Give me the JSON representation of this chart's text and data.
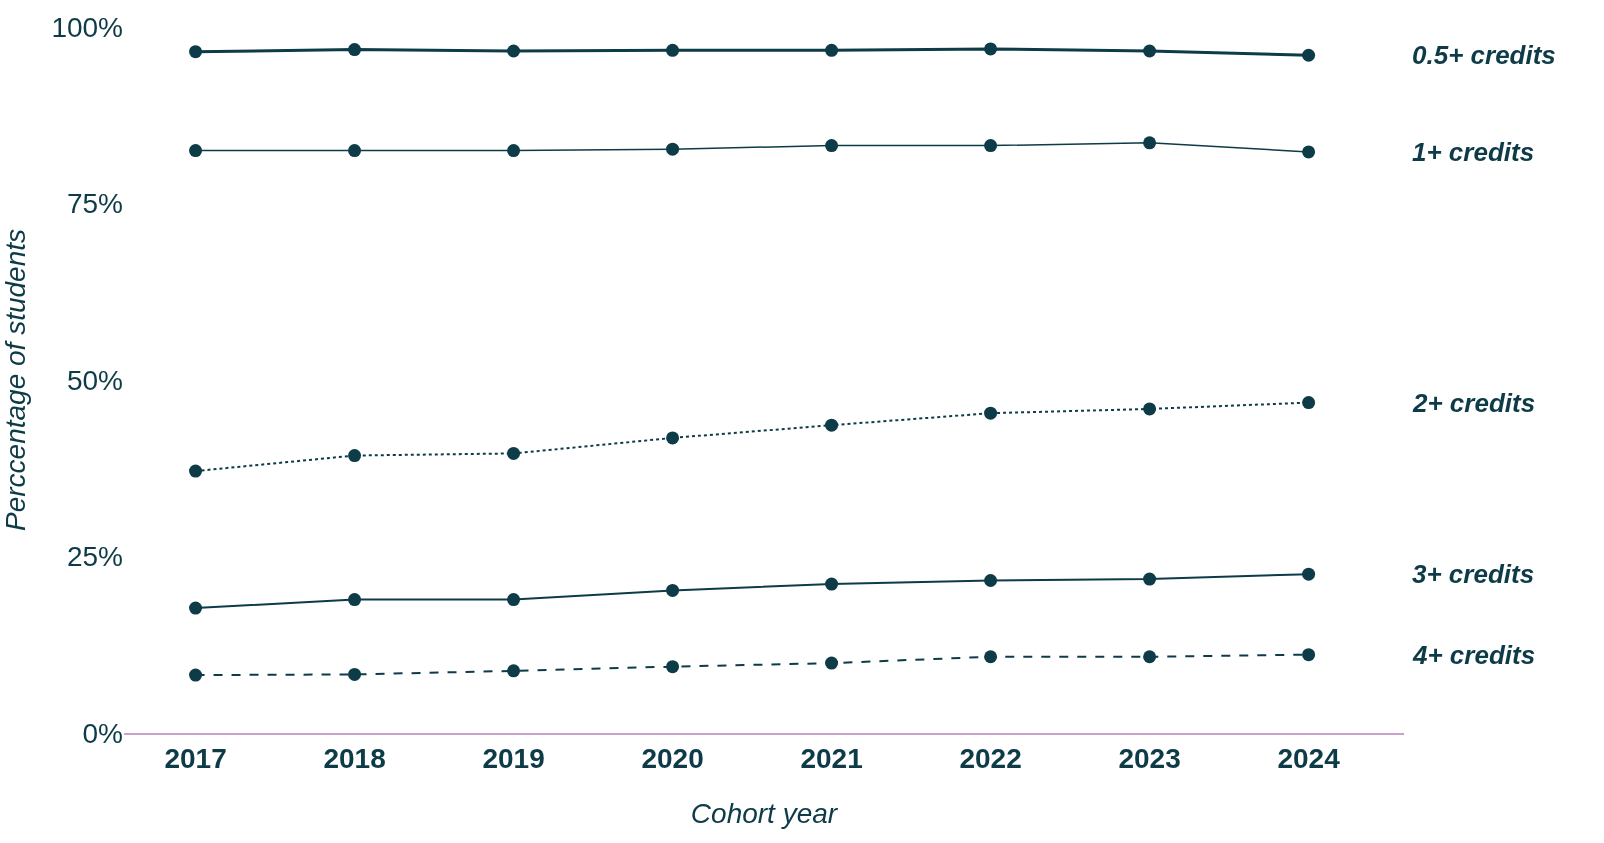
{
  "chart_data": {
    "type": "line",
    "xlabel": "Cohort year",
    "ylabel": "Perccentage of students",
    "categories": [
      "2017",
      "2018",
      "2019",
      "2020",
      "2021",
      "2022",
      "2023",
      "2024"
    ],
    "ylim": [
      0,
      100
    ],
    "yticks": [
      {
        "value": 0,
        "label": "0%"
      },
      {
        "value": 25,
        "label": "25%"
      },
      {
        "value": 50,
        "label": "50%"
      },
      {
        "value": 75,
        "label": "75%"
      },
      {
        "value": 100,
        "label": "100%"
      }
    ],
    "legend": false,
    "marker": "circle",
    "series": [
      {
        "name": "0.5+ credits",
        "color": "#0d3b47",
        "line_style": "solid",
        "values": [
          96.5,
          96.8,
          96.6,
          96.7,
          96.7,
          96.9,
          96.6,
          96.0
        ]
      },
      {
        "name": "1+ credits",
        "color": "#0d3b47",
        "line_style": "solid",
        "values": [
          82.5,
          82.5,
          82.5,
          82.7,
          83.2,
          83.2,
          83.6,
          82.3
        ]
      },
      {
        "name": "2+ credits",
        "color": "#0d3b47",
        "line_style": "dotted",
        "values": [
          37.1,
          39.3,
          39.6,
          41.8,
          43.6,
          45.3,
          45.9,
          46.8
        ]
      },
      {
        "name": "3+ credits",
        "color": "#0d3b47",
        "line_style": "solid",
        "values": [
          17.7,
          18.9,
          18.9,
          20.2,
          21.1,
          21.6,
          21.8,
          22.5
        ]
      },
      {
        "name": "4+ credits",
        "color": "#0d3b47",
        "line_style": "dashed",
        "values": [
          8.2,
          8.3,
          8.8,
          9.4,
          9.9,
          10.8,
          10.8,
          11.1
        ]
      }
    ]
  }
}
